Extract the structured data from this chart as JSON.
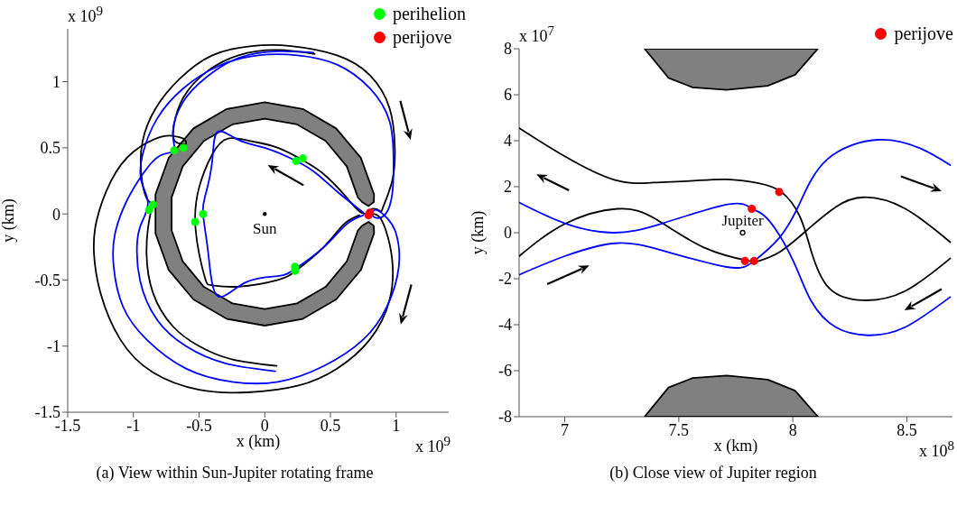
{
  "chart_data": [
    {
      "type": "line",
      "title": "(a)  View within Sun-Jupiter rotating frame",
      "xlabel": "x (km)",
      "ylabel": "y (km)",
      "xlim": [
        -1.5,
        1.4
      ],
      "ylim": [
        -1.5,
        1.4
      ],
      "xticks": [
        -1.5,
        -1,
        -0.5,
        0,
        0.5,
        1
      ],
      "yticks": [
        -1.5,
        -1,
        -0.5,
        0,
        0.5,
        1
      ],
      "legend": "top right",
      "annotations": [
        "x 10$^{9}$",
        "x 10$^{9}$",
        {
          "text": "Sun",
          "x": 0,
          "y": 0
        }
      ],
      "series": [
        {
          "type": "area",
          "color": "#808080",
          "x": [
            0.832,
            0.732,
            0.543,
            0.289,
            0,
            -0.289,
            -0.543,
            -0.732,
            -0.832,
            -0.832,
            -0.732,
            -0.543,
            -0.289,
            0,
            0.289,
            0.543,
            0.732,
            0.832,
            0.83,
            0.79,
            0.74,
            0.709,
            0.624,
            0.463,
            0.246,
            0,
            -0.246,
            -0.463,
            -0.624,
            -0.709,
            -0.709,
            -0.624,
            -0.463,
            -0.246,
            0,
            0.246,
            0.463,
            0.624,
            0.709,
            0.74,
            0.79,
            0.83
          ],
          "values": [
            0.147,
            0.423,
            0.647,
            0.794,
            0.845,
            0.794,
            0.647,
            0.423,
            0.147,
            -0.147,
            -0.423,
            -0.647,
            -0.794,
            -0.845,
            -0.794,
            -0.647,
            -0.423,
            -0.147,
            -0.09,
            -0.06,
            -0.09,
            -0.125,
            -0.36,
            -0.552,
            -0.677,
            -0.72,
            -0.677,
            -0.552,
            -0.36,
            -0.125,
            0.125,
            0.36,
            0.552,
            0.677,
            0.72,
            0.677,
            0.552,
            0.36,
            0.125,
            0.09,
            0.06,
            0.09
          ]
        },
        {
          "color": "#000000",
          "x": [
            0.38,
            0.1,
            -0.2,
            -0.45,
            -0.62,
            -0.69,
            -0.69,
            -0.64,
            -0.6,
            -0.62,
            -0.7,
            -0.8,
            -1.0,
            -1.17,
            -1.28,
            -1.3,
            -1.25,
            -1.1,
            -0.85,
            -0.5,
            -0.13,
            0.25,
            0.55,
            0.8,
            0.95,
            0.97,
            0.92,
            0.87,
            0.83,
            0.8,
            0.83,
            0.88,
            0.9,
            0.97,
            0.99,
            0.95,
            0.8,
            0.55,
            0.2,
            -0.1,
            -0.4,
            -0.65,
            -0.83,
            -0.93,
            -0.94,
            -0.9,
            -0.86,
            -0.88,
            -0.9,
            -0.85,
            -0.7,
            -0.5,
            -0.25,
            0.09
          ],
          "values": [
            1.21,
            1.24,
            1.2,
            1.07,
            0.88,
            0.68,
            0.56,
            0.53,
            0.53,
            0.57,
            0.59,
            0.58,
            0.47,
            0.25,
            -0.05,
            -0.3,
            -0.6,
            -0.95,
            -1.2,
            -1.33,
            -1.35,
            -1.3,
            -1.17,
            -0.95,
            -0.65,
            -0.35,
            -0.12,
            -0.02,
            0.0,
            0.02,
            0.04,
            0.02,
            0.05,
            0.25,
            0.5,
            0.8,
            1.05,
            1.2,
            1.27,
            1.27,
            1.2,
            1.02,
            0.8,
            0.55,
            0.3,
            0.12,
            0.07,
            -0.05,
            -0.3,
            -0.6,
            -0.85,
            -1.0,
            -1.1,
            -1.15
          ]
        },
        {
          "color": "#000000",
          "x": [
            0.8,
            0.72,
            0.6,
            0.45,
            0.3,
            0.1,
            -0.1,
            -0.28,
            -0.4,
            -0.5,
            -0.53,
            -0.5,
            -0.45,
            -0.4,
            -0.2,
            0.1,
            0.25,
            0.45,
            0.6,
            0.72
          ],
          "values": [
            0.0,
            0.02,
            0.15,
            0.3,
            0.4,
            0.5,
            0.55,
            0.57,
            0.45,
            0.2,
            -0.05,
            -0.3,
            -0.5,
            -0.54,
            -0.55,
            -0.5,
            -0.42,
            -0.25,
            -0.08,
            -0.01
          ]
        },
        {
          "color": "#0000ff",
          "x": [
            0.37,
            0.1,
            -0.2,
            -0.45,
            -0.62,
            -0.7,
            -0.69,
            -0.8,
            -0.93,
            -1.05,
            -1.14,
            -1.15,
            -1.08,
            -0.9,
            -0.6,
            -0.25,
            0.1,
            0.45,
            0.75,
            0.93,
            1.02,
            1.0,
            0.93,
            0.85,
            0.82,
            0.85,
            0.92,
            0.97,
            0.98,
            0.95,
            0.8,
            0.55,
            0.25,
            -0.05,
            -0.35,
            -0.62,
            -0.82,
            -0.93,
            -0.94,
            -0.89,
            -0.93,
            -0.97,
            -0.95,
            -0.82,
            -0.6,
            -0.3,
            0.08
          ],
          "values": [
            1.22,
            1.23,
            1.18,
            1.03,
            0.85,
            0.62,
            0.48,
            0.44,
            0.3,
            0.1,
            -0.15,
            -0.4,
            -0.7,
            -0.95,
            -1.17,
            -1.27,
            -1.27,
            -1.15,
            -0.95,
            -0.7,
            -0.4,
            -0.15,
            -0.03,
            0.03,
            0.0,
            -0.03,
            0.0,
            0.15,
            0.4,
            0.7,
            0.95,
            1.13,
            1.2,
            1.2,
            1.12,
            0.95,
            0.72,
            0.45,
            0.25,
            0.09,
            -0.05,
            -0.2,
            -0.5,
            -0.8,
            -1.0,
            -1.13,
            -1.19
          ]
        },
        {
          "color": "#0000ff",
          "x": [
            0.75,
            0.55,
            0.4,
            0.24,
            0.0,
            -0.2,
            -0.36,
            -0.4,
            -0.45,
            -0.47,
            -0.43,
            -0.36,
            -0.15,
            0.1,
            0.24,
            0.45,
            0.62,
            0.75
          ],
          "values": [
            0.01,
            0.17,
            0.3,
            0.4,
            0.5,
            0.56,
            0.62,
            0.4,
            0.15,
            0.0,
            -0.3,
            -0.62,
            -0.52,
            -0.47,
            -0.41,
            -0.25,
            -0.08,
            -0.01
          ]
        },
        {
          "type": "scatter",
          "name": "perihelion",
          "color": "#00ff00",
          "x": [
            -0.69,
            -0.62,
            -0.85,
            -0.88,
            -0.53,
            -0.47,
            0.24,
            0.29,
            0.23,
            0.23
          ],
          "values": [
            0.48,
            0.5,
            0.07,
            0.03,
            -0.06,
            0.0,
            0.4,
            0.42,
            -0.4,
            -0.43
          ]
        },
        {
          "type": "scatter",
          "name": "perijove",
          "color": "#ff0000",
          "x": [
            0.79,
            0.8
          ],
          "values": [
            -0.01,
            0.01
          ]
        }
      ]
    },
    {
      "type": "line",
      "title": "(b)  Close view of Jupiter region",
      "xlabel": "x (km)",
      "ylabel": "y (km)",
      "xlim": [
        6.8,
        8.7
      ],
      "ylim": [
        -8,
        8
      ],
      "xticks": [
        7,
        7.5,
        8,
        8.5
      ],
      "yticks": [
        -8,
        -6,
        -4,
        -2,
        0,
        2,
        4,
        6,
        8
      ],
      "legend": "top right",
      "annotations": [
        "x 10$^{7}$",
        "x 10$^{8}$",
        {
          "text": "Jupiter",
          "x": 7.78,
          "y": 0
        }
      ],
      "series": [
        {
          "type": "area",
          "color": "#808080",
          "x": [
            7.35,
            7.455,
            7.56,
            7.71,
            7.89,
            8.01,
            8.11
          ],
          "values": [
            8,
            6.73,
            6.32,
            6.21,
            6.39,
            6.87,
            8
          ]
        },
        {
          "type": "area",
          "color": "#808080",
          "x": [
            7.35,
            7.455,
            7.56,
            7.71,
            7.89,
            8.01,
            8.11
          ],
          "values": [
            -8,
            -6.73,
            -6.32,
            -6.21,
            -6.39,
            -6.87,
            -8
          ]
        },
        {
          "color": "#000000",
          "x": [
            6.8,
            7.0,
            7.22,
            7.39,
            7.55,
            7.71,
            7.85,
            7.95,
            8.03,
            8.08,
            8.16,
            8.31,
            8.49,
            8.69
          ],
          "values": [
            4.55,
            3.32,
            2.29,
            2.18,
            2.25,
            2.32,
            2.15,
            1.77,
            0.72,
            -0.78,
            -2.42,
            -2.94,
            -2.55,
            -1.12
          ]
        },
        {
          "color": "#000000",
          "x": [
            6.8,
            7.0,
            7.23,
            7.4,
            7.61,
            7.81,
            7.85,
            7.94,
            8.07,
            8.19,
            8.31,
            8.49,
            8.69
          ],
          "values": [
            -1.02,
            0.38,
            1.04,
            0.59,
            -0.64,
            -1.23,
            -1.23,
            -0.85,
            0.18,
            1.13,
            1.54,
            1.06,
            -0.41
          ]
        },
        {
          "color": "#0000ff",
          "x": [
            6.8,
            7.0,
            7.21,
            7.43,
            7.72,
            7.82,
            7.89,
            8.0,
            8.08,
            8.19,
            8.33,
            8.49,
            8.69
          ],
          "values": [
            1.31,
            0.41,
            0.0,
            0.41,
            1.24,
            1.04,
            0.59,
            -1.19,
            -2.96,
            -4.12,
            -4.46,
            -4.12,
            -2.8
          ]
        },
        {
          "color": "#0000ff",
          "x": [
            6.8,
            7.0,
            7.22,
            7.43,
            7.71,
            7.83,
            7.94,
            8.03,
            8.15,
            8.37,
            8.56,
            8.69
          ],
          "values": [
            -1.83,
            -1.02,
            -0.46,
            -0.78,
            -1.49,
            -1.23,
            -0.23,
            1.27,
            3.18,
            4.04,
            3.66,
            2.94
          ]
        },
        {
          "type": "scatter",
          "name": "perijove",
          "color": "#ff0000",
          "x": [
            7.94,
            7.82,
            7.79,
            7.83
          ],
          "values": [
            1.77,
            1.04,
            -1.23,
            -1.23
          ]
        }
      ]
    }
  ]
}
